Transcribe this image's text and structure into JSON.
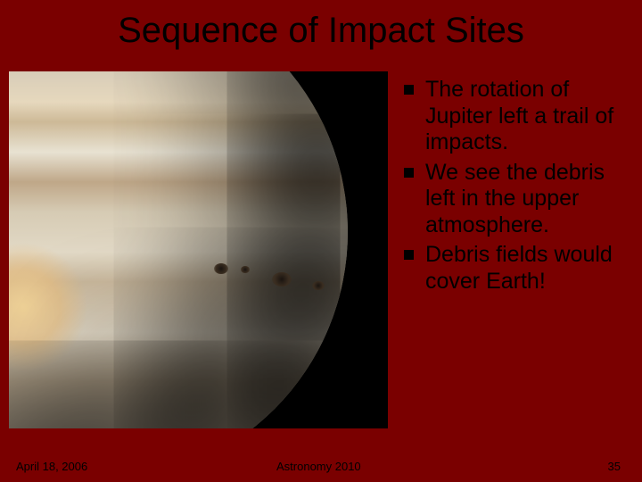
{
  "title": "Sequence of Impact Sites",
  "bullets": {
    "items": [
      "The rotation of Jupiter left a trail of impacts.",
      "We see the debris left in the upper atmosphere.",
      "Debris fields would cover Earth!"
    ]
  },
  "footer": {
    "date": "April 18, 2006",
    "course": "Astronomy 2010",
    "slide_number": "35"
  },
  "style": {
    "background_color": "#7a0000",
    "title_fontsize": 40,
    "body_fontsize": 25,
    "footer_fontsize": 13,
    "bullet_marker_color": "#000000",
    "text_color": "#000000",
    "image_background": "#000000"
  },
  "image": {
    "description": "jupiter-impact-photo",
    "impact_spots": 4
  }
}
